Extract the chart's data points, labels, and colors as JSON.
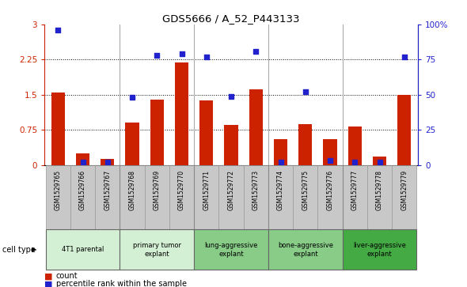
{
  "title": "GDS5666 / A_52_P443133",
  "samples": [
    "GSM1529765",
    "GSM1529766",
    "GSM1529767",
    "GSM1529768",
    "GSM1529769",
    "GSM1529770",
    "GSM1529771",
    "GSM1529772",
    "GSM1529773",
    "GSM1529774",
    "GSM1529775",
    "GSM1529776",
    "GSM1529777",
    "GSM1529778",
    "GSM1529779"
  ],
  "bar_values": [
    1.55,
    0.25,
    0.13,
    0.9,
    1.4,
    2.18,
    1.38,
    0.85,
    1.62,
    0.55,
    0.88,
    0.55,
    0.82,
    0.18,
    1.5
  ],
  "dot_values_pct": [
    96,
    2,
    2,
    48,
    78,
    79,
    77,
    49,
    81,
    2,
    52,
    3,
    2,
    2,
    77
  ],
  "ylim_left": [
    0,
    3.0
  ],
  "ylim_right": [
    0,
    100
  ],
  "yticks_left": [
    0,
    0.75,
    1.5,
    2.25,
    3.0
  ],
  "yticks_right": [
    0,
    25,
    50,
    75,
    100
  ],
  "ytick_labels_left": [
    "0",
    "0.75",
    "1.5",
    "2.25",
    "3"
  ],
  "ytick_labels_right": [
    "0",
    "25",
    "50",
    "75",
    "100%"
  ],
  "groups": [
    {
      "label": "4T1 parental",
      "start": 0,
      "end": 2,
      "color": "#d4f0d4"
    },
    {
      "label": "primary tumor\nexplant",
      "start": 3,
      "end": 5,
      "color": "#d4f0d4"
    },
    {
      "label": "lung-aggressive\nexplant",
      "start": 6,
      "end": 8,
      "color": "#88cc88"
    },
    {
      "label": "bone-aggressive\nexplant",
      "start": 9,
      "end": 11,
      "color": "#88cc88"
    },
    {
      "label": "liver-aggressive\nexplant",
      "start": 12,
      "end": 14,
      "color": "#44aa44"
    }
  ],
  "bar_color": "#cc2200",
  "dot_color": "#2222cc",
  "cell_type_label": "cell type",
  "legend_bar_label": "count",
  "legend_dot_label": "percentile rank within the sample",
  "tick_bg_color": "#c8c8c8",
  "sep_color": "#aaaaaa",
  "group_sep_color": "#888888"
}
